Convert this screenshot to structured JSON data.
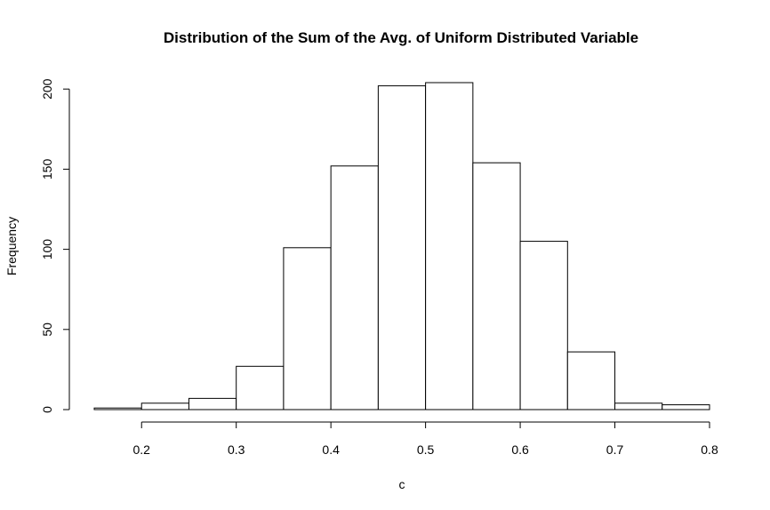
{
  "chart_data": {
    "type": "bar",
    "title": "Distribution of the Sum of the Avg. of Uniform Distributed Variable",
    "xlabel": "c",
    "ylabel": "Frequency",
    "bins": [
      {
        "start": 0.15,
        "end": 0.2,
        "count": 1
      },
      {
        "start": 0.2,
        "end": 0.25,
        "count": 4
      },
      {
        "start": 0.25,
        "end": 0.3,
        "count": 7
      },
      {
        "start": 0.3,
        "end": 0.35,
        "count": 27
      },
      {
        "start": 0.35,
        "end": 0.4,
        "count": 101
      },
      {
        "start": 0.4,
        "end": 0.45,
        "count": 152
      },
      {
        "start": 0.45,
        "end": 0.5,
        "count": 202
      },
      {
        "start": 0.5,
        "end": 0.55,
        "count": 204
      },
      {
        "start": 0.55,
        "end": 0.6,
        "count": 154
      },
      {
        "start": 0.6,
        "end": 0.65,
        "count": 105
      },
      {
        "start": 0.65,
        "end": 0.7,
        "count": 36
      },
      {
        "start": 0.7,
        "end": 0.75,
        "count": 4
      },
      {
        "start": 0.75,
        "end": 0.8,
        "count": 3
      }
    ],
    "x_ticks": [
      "0.2",
      "0.3",
      "0.4",
      "0.5",
      "0.6",
      "0.7",
      "0.8"
    ],
    "x_tick_values": [
      0.2,
      0.3,
      0.4,
      0.5,
      0.6,
      0.7,
      0.8
    ],
    "y_ticks": [
      "0",
      "50",
      "100",
      "150",
      "200"
    ],
    "y_tick_values": [
      0,
      50,
      100,
      150,
      200
    ],
    "xlim": [
      0.15,
      0.8
    ],
    "ylim": [
      0,
      204
    ],
    "grid": false,
    "bar_fill": "#ffffff",
    "bar_stroke": "#000000"
  }
}
